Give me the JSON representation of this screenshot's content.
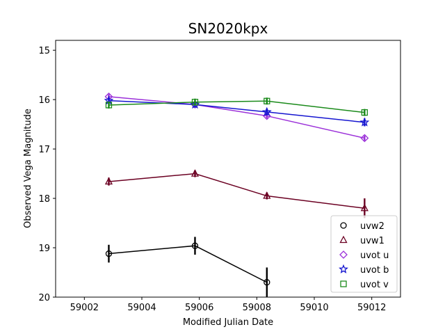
{
  "chart_data": {
    "type": "scatter",
    "title": "SN2020kpx",
    "xlabel": "Modified Julian Date",
    "ylabel": "Observed Vega Magnitude",
    "xlim": [
      59001,
      59013
    ],
    "ylim": [
      20,
      14.8
    ],
    "y_inverted": true,
    "xticks": [
      59002,
      59004,
      59006,
      59008,
      59010,
      59012
    ],
    "yticks": [
      15,
      16,
      17,
      18,
      19,
      20
    ],
    "grid": false,
    "legend_position": "lower-right",
    "series": [
      {
        "name": "uvw2",
        "color": "#000000",
        "marker": "circle",
        "x": [
          59002.85,
          59005.85,
          59008.35
        ],
        "y": [
          19.12,
          18.96,
          19.7
        ],
        "err": [
          0.18,
          0.18,
          0.3
        ]
      },
      {
        "name": "uvw1",
        "color": "#6b0022",
        "marker": "triangle",
        "x": [
          59002.85,
          59005.85,
          59008.35,
          59011.75
        ],
        "y": [
          17.66,
          17.5,
          17.95,
          18.2
        ],
        "err": [
          0.08,
          0.07,
          0.07,
          0.2
        ]
      },
      {
        "name": "uvot u",
        "color": "#9b30d9",
        "marker": "diamond",
        "x": [
          59002.85,
          59005.85,
          59008.35,
          59011.75
        ],
        "y": [
          15.94,
          16.1,
          16.33,
          16.78
        ],
        "err": [
          0.05,
          0.05,
          0.05,
          0.05
        ]
      },
      {
        "name": "uvot b",
        "color": "#1515d0",
        "marker": "star",
        "x": [
          59002.85,
          59005.85,
          59008.35,
          59011.75
        ],
        "y": [
          16.02,
          16.1,
          16.25,
          16.46
        ],
        "err": [
          0.06,
          0.06,
          0.07,
          0.08
        ]
      },
      {
        "name": "uvot v",
        "color": "#1a8a1a",
        "marker": "square",
        "x": [
          59002.85,
          59005.85,
          59008.35,
          59011.75
        ],
        "y": [
          16.11,
          16.05,
          16.03,
          16.26
        ],
        "err": [
          0.07,
          0.07,
          0.07,
          0.07
        ]
      }
    ]
  }
}
